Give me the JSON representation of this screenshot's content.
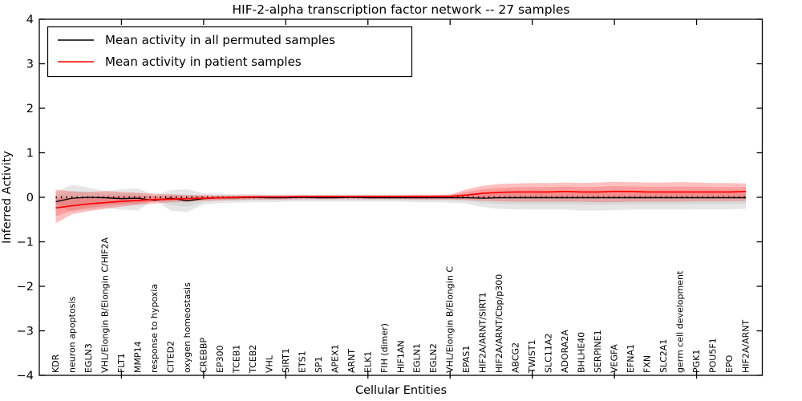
{
  "title": "HIF-2-alpha transcription factor network -- 27 samples",
  "legend": {
    "items": [
      {
        "label": "Mean activity in all permuted samples",
        "color": "#000000"
      },
      {
        "label": "Mean activity in patient samples",
        "color": "#ff0000"
      }
    ]
  },
  "chart_data": {
    "type": "line",
    "title": "HIF-2-alpha transcription factor network -- 27 samples",
    "xlabel": "Cellular Entities",
    "ylabel": "Inferred Activity",
    "ylim": [
      -4,
      4
    ],
    "yticks": [
      -4,
      -3,
      -2,
      -1,
      0,
      1,
      2,
      3,
      4
    ],
    "xticks": [
      5,
      10,
      15,
      20,
      25,
      30,
      35,
      40
    ],
    "grid": false,
    "legend_position": "upper left",
    "zero_line": 0,
    "categories": [
      "KDR",
      "neuron apoptosis",
      "EGLN3",
      "VHL/Elongin B/Elongin C/HIF2A",
      "FLT1",
      "MMP14",
      "response to hypoxia",
      "CITED2",
      "oxygen homeostasis",
      "CREBBP",
      "EP300",
      "TCEB1",
      "TCEB2",
      "VHL",
      "SIRT1",
      "ETS1",
      "SP1",
      "APEX1",
      "ARNT",
      "ELK1",
      "FIH (dimer)",
      "HIF1AN",
      "EGLN1",
      "EGLN2",
      "VHL/Elongin B/Elongin C",
      "EPAS1",
      "HIF2A/ARNT/SIRT1",
      "HIF2A/ARNT/Cbp/p300",
      "ABCG2",
      "TWIST1",
      "SLC11A2",
      "ADORA2A",
      "BHLHE40",
      "SERPINE1",
      "VEGFA",
      "EFNA1",
      "FXN",
      "SLC2A1",
      "germ cell development",
      "PGK1",
      "POU5F1",
      "EPO",
      "HIF2A/ARNT"
    ],
    "series": [
      {
        "name": "Mean activity in all permuted samples",
        "color": "#000000",
        "values": [
          -0.1,
          -0.02,
          0.0,
          -0.01,
          -0.03,
          -0.02,
          -0.07,
          -0.02,
          -0.08,
          -0.03,
          -0.01,
          -0.01,
          0.0,
          -0.01,
          -0.01,
          0.0,
          -0.01,
          -0.01,
          0.0,
          -0.01,
          -0.01,
          -0.01,
          -0.01,
          -0.01,
          -0.01,
          -0.01,
          -0.02,
          -0.01,
          -0.01,
          -0.01,
          -0.01,
          -0.01,
          -0.01,
          -0.01,
          -0.01,
          -0.01,
          -0.01,
          -0.01,
          -0.01,
          -0.01,
          -0.01,
          -0.01,
          -0.01
        ]
      },
      {
        "name": "Mean activity in patient samples",
        "color": "#ff0000",
        "values": [
          -0.24,
          -0.19,
          -0.15,
          -0.12,
          -0.09,
          -0.07,
          -0.05,
          -0.04,
          -0.03,
          -0.02,
          -0.01,
          0.0,
          0.01,
          0.01,
          0.01,
          0.02,
          0.02,
          0.02,
          0.02,
          0.02,
          0.02,
          0.02,
          0.02,
          0.02,
          0.02,
          0.05,
          0.09,
          0.11,
          0.12,
          0.12,
          0.12,
          0.13,
          0.12,
          0.12,
          0.13,
          0.13,
          0.12,
          0.12,
          0.12,
          0.12,
          0.12,
          0.12,
          0.13
        ]
      }
    ],
    "bands": [
      {
        "name": "permuted-samples-range",
        "color": "#b0b0b0",
        "series_ref": 0,
        "lo": [
          -0.2,
          -0.32,
          -0.28,
          -0.24,
          -0.28,
          -0.3,
          -0.05,
          -0.3,
          -0.33,
          -0.16,
          -0.13,
          -0.12,
          -0.11,
          -0.11,
          -0.1,
          -0.1,
          -0.1,
          -0.1,
          -0.1,
          -0.1,
          -0.1,
          -0.1,
          -0.11,
          -0.11,
          -0.12,
          -0.14,
          -0.22,
          -0.26,
          -0.27,
          -0.28,
          -0.28,
          -0.28,
          -0.3,
          -0.3,
          -0.29,
          -0.28,
          -0.28,
          -0.28,
          -0.28,
          -0.27,
          -0.27,
          -0.27,
          -0.26
        ],
        "hi": [
          0.12,
          0.28,
          0.22,
          0.14,
          0.18,
          0.2,
          0.05,
          0.16,
          0.18,
          0.09,
          0.08,
          0.07,
          0.07,
          0.06,
          0.06,
          0.06,
          0.06,
          0.06,
          0.06,
          0.06,
          0.06,
          0.06,
          0.06,
          0.06,
          0.06,
          0.07,
          0.08,
          0.09,
          0.1,
          0.1,
          0.1,
          0.1,
          0.1,
          0.1,
          0.1,
          0.1,
          0.1,
          0.1,
          0.1,
          0.1,
          0.1,
          0.1,
          0.1
        ]
      },
      {
        "name": "patient-samples-range",
        "color": "#ff3030",
        "series_ref": 1,
        "lo": [
          -0.58,
          -0.38,
          -0.31,
          -0.26,
          -0.21,
          -0.17,
          -0.14,
          -0.11,
          -0.1,
          -0.08,
          -0.07,
          -0.06,
          -0.05,
          -0.05,
          -0.05,
          -0.04,
          -0.04,
          -0.04,
          -0.04,
          -0.04,
          -0.04,
          -0.04,
          -0.05,
          -0.05,
          -0.05,
          -0.06,
          -0.08,
          -0.09,
          -0.1,
          -0.1,
          -0.1,
          -0.1,
          -0.1,
          -0.11,
          -0.11,
          -0.1,
          -0.1,
          -0.1,
          -0.1,
          -0.09,
          -0.09,
          -0.09,
          -0.08
        ],
        "hi": [
          0.17,
          0.13,
          0.12,
          0.14,
          0.12,
          0.1,
          0.08,
          0.06,
          0.05,
          0.05,
          0.04,
          0.04,
          0.04,
          0.04,
          0.04,
          0.04,
          0.04,
          0.04,
          0.04,
          0.04,
          0.04,
          0.04,
          0.05,
          0.05,
          0.06,
          0.18,
          0.26,
          0.3,
          0.31,
          0.32,
          0.32,
          0.33,
          0.32,
          0.33,
          0.35,
          0.34,
          0.33,
          0.33,
          0.34,
          0.33,
          0.32,
          0.32,
          0.31
        ]
      }
    ]
  }
}
